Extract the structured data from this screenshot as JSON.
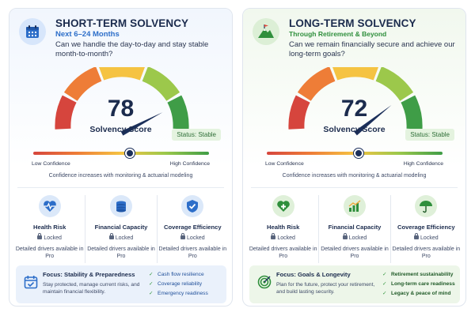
{
  "short_term": {
    "title": "SHORT-TERM SOLVENCY",
    "subtitle": "Next 6–24 Months",
    "question": "Can we handle the day-to-day and stay stable month-to-month?",
    "score": "78",
    "score_value": 78,
    "score_label": "Solvency Score",
    "status": "Status: Stable",
    "scale_low": "Low Confidence",
    "scale_high": "High Confidence",
    "scale_position": 0.72,
    "note": "Confidence increases with monitoring & actuarial modeling",
    "icon": "calendar-icon",
    "drivers": [
      {
        "name": "Health Risk",
        "locked": "Locked",
        "detail": "Detailed drivers available in Pro",
        "icon": "heartbeat-icon"
      },
      {
        "name": "Financial Capacity",
        "locked": "Locked",
        "detail": "Detailed drivers available in Pro",
        "icon": "coins-icon"
      },
      {
        "name": "Coverage Efficiency",
        "locked": "Locked",
        "detail": "Detailed drivers available in Pro",
        "icon": "shield-check-icon"
      }
    ],
    "focus": {
      "title": "Focus: Stability & Preparedness",
      "description": "Stay protected, manage current risks, and maintain financial flexibility.",
      "icon": "calendar-check-icon",
      "items": [
        "Cash flow resilience",
        "Coverage reliability",
        "Emergency readiness"
      ]
    }
  },
  "long_term": {
    "title": "LONG-TERM SOLVENCY",
    "subtitle": "Through Retirement & Beyond",
    "question": "Can we remain financially secure and achieve our long-term goals?",
    "score": "72",
    "score_value": 72,
    "score_label": "Solvency Score",
    "status": "Status: Stable",
    "scale_low": "Low Confidence",
    "scale_high": "High Confidence",
    "scale_position": 0.66,
    "note": "Confidence increases with monitoring & actuarial modeling",
    "icon": "mountain-flag-icon",
    "drivers": [
      {
        "name": "Health Risk",
        "locked": "Locked",
        "detail": "Detailed drivers available in Pro",
        "icon": "heart-plus-icon"
      },
      {
        "name": "Financial Capacity",
        "locked": "Locked",
        "detail": "Detailed drivers available in Pro",
        "icon": "growth-chart-icon"
      },
      {
        "name": "Coverage Efficiency",
        "locked": "Locked",
        "detail": "Detailed drivers available in Pro",
        "icon": "umbrella-icon"
      }
    ],
    "focus": {
      "title": "Focus: Goals & Longevity",
      "description": "Plan for the future, protect your retirement, and build lasting security.",
      "icon": "target-icon",
      "items": [
        "Retirement sustainability",
        "Long-term care readiness",
        "Legacy & peace of mind"
      ]
    }
  },
  "colors": {
    "navy": "#1b2b4d",
    "blue_accent": "#2d6ec9",
    "green_accent": "#2f8f3c",
    "gauge_red": "#d6453d",
    "gauge_orange": "#ee7d37",
    "gauge_yellow": "#f5c342",
    "gauge_lightgreen": "#9cc84b",
    "gauge_green": "#3f9d47"
  }
}
